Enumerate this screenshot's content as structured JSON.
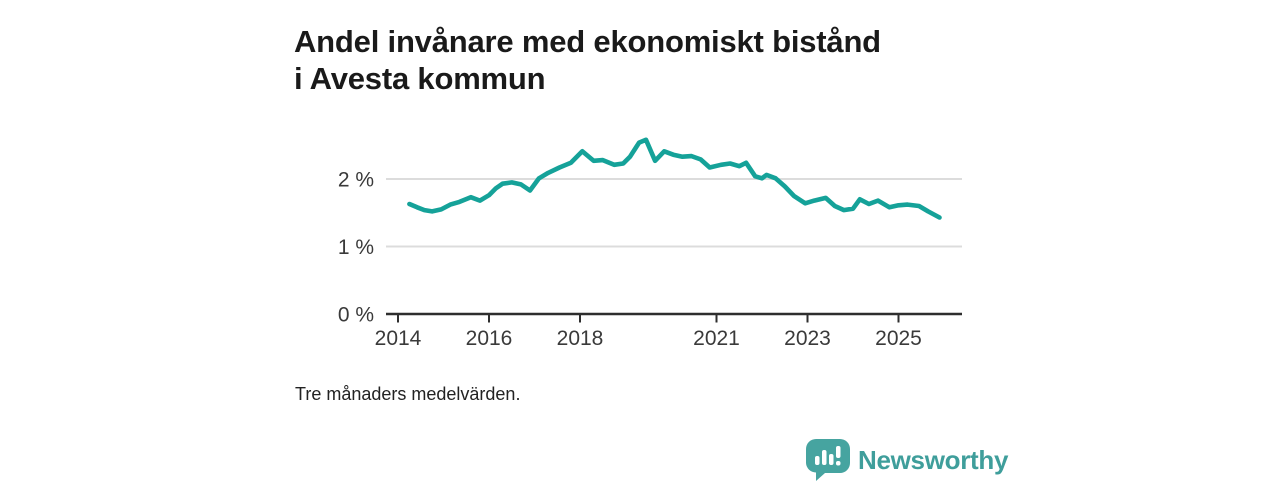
{
  "title": "Andel invånare med ekonomiskt bistånd i Avesta kommun",
  "footnote": "Tre månaders medelvärden.",
  "branding": {
    "name": "Newsworthy",
    "icon": "newsworthy-speech-bubble-bar-chart-icon",
    "wordmark_color": "#3f9e9b",
    "icon_color": "#46a4a0"
  },
  "colors": {
    "line": "#15a299",
    "grid": "#dcdcdc",
    "axis": "#2e2e2e",
    "tick_label": "#3a3a3a",
    "title": "#1a1a1a",
    "background": "#ffffff"
  },
  "chart_data": {
    "type": "line",
    "title": "Andel invånare med ekonomiskt bistånd i Avesta kommun",
    "subtitle": "Tre månaders medelvärden.",
    "unit": "%",
    "xlabel": "",
    "ylabel": "",
    "grid": "horizontal",
    "legend": "none",
    "ylim": [
      0,
      2.75
    ],
    "xlim": [
      2013.74,
      2026.4
    ],
    "y_gridlines": [
      1,
      2
    ],
    "y_tick_labels": [
      "0 %",
      "1 %",
      "2 %"
    ],
    "y_tick_values": [
      0,
      1,
      2
    ],
    "x_tick_labels": [
      "2014",
      "2016",
      "2018",
      "2021",
      "2023",
      "2025"
    ],
    "x_tick_values": [
      2014,
      2016,
      2018,
      2021,
      2023,
      2025
    ],
    "series": [
      {
        "name": "Andel invånare med ekonomiskt bistånd",
        "points": [
          [
            2014.25,
            1.63
          ],
          [
            2014.42,
            1.58
          ],
          [
            2014.58,
            1.54
          ],
          [
            2014.75,
            1.52
          ],
          [
            2014.95,
            1.55
          ],
          [
            2015.15,
            1.62
          ],
          [
            2015.35,
            1.66
          ],
          [
            2015.6,
            1.73
          ],
          [
            2015.8,
            1.68
          ],
          [
            2016.0,
            1.76
          ],
          [
            2016.15,
            1.86
          ],
          [
            2016.3,
            1.93
          ],
          [
            2016.5,
            1.95
          ],
          [
            2016.7,
            1.92
          ],
          [
            2016.9,
            1.83
          ],
          [
            2017.1,
            2.01
          ],
          [
            2017.3,
            2.09
          ],
          [
            2017.55,
            2.17
          ],
          [
            2017.8,
            2.24
          ],
          [
            2018.05,
            2.41
          ],
          [
            2018.3,
            2.27
          ],
          [
            2018.5,
            2.28
          ],
          [
            2018.75,
            2.21
          ],
          [
            2018.95,
            2.23
          ],
          [
            2019.1,
            2.33
          ],
          [
            2019.3,
            2.54
          ],
          [
            2019.45,
            2.58
          ],
          [
            2019.65,
            2.27
          ],
          [
            2019.85,
            2.41
          ],
          [
            2020.05,
            2.36
          ],
          [
            2020.25,
            2.33
          ],
          [
            2020.45,
            2.34
          ],
          [
            2020.65,
            2.29
          ],
          [
            2020.85,
            2.17
          ],
          [
            2021.1,
            2.21
          ],
          [
            2021.3,
            2.23
          ],
          [
            2021.5,
            2.19
          ],
          [
            2021.65,
            2.24
          ],
          [
            2021.85,
            2.04
          ],
          [
            2022.0,
            2.01
          ],
          [
            2022.1,
            2.06
          ],
          [
            2022.3,
            2.01
          ],
          [
            2022.5,
            1.89
          ],
          [
            2022.7,
            1.75
          ],
          [
            2022.95,
            1.64
          ],
          [
            2023.15,
            1.68
          ],
          [
            2023.4,
            1.72
          ],
          [
            2023.6,
            1.6
          ],
          [
            2023.8,
            1.54
          ],
          [
            2024.0,
            1.56
          ],
          [
            2024.15,
            1.7
          ],
          [
            2024.35,
            1.63
          ],
          [
            2024.55,
            1.68
          ],
          [
            2024.8,
            1.58
          ],
          [
            2025.0,
            1.61
          ],
          [
            2025.2,
            1.62
          ],
          [
            2025.45,
            1.6
          ],
          [
            2025.65,
            1.52
          ],
          [
            2025.9,
            1.43
          ]
        ]
      }
    ]
  }
}
